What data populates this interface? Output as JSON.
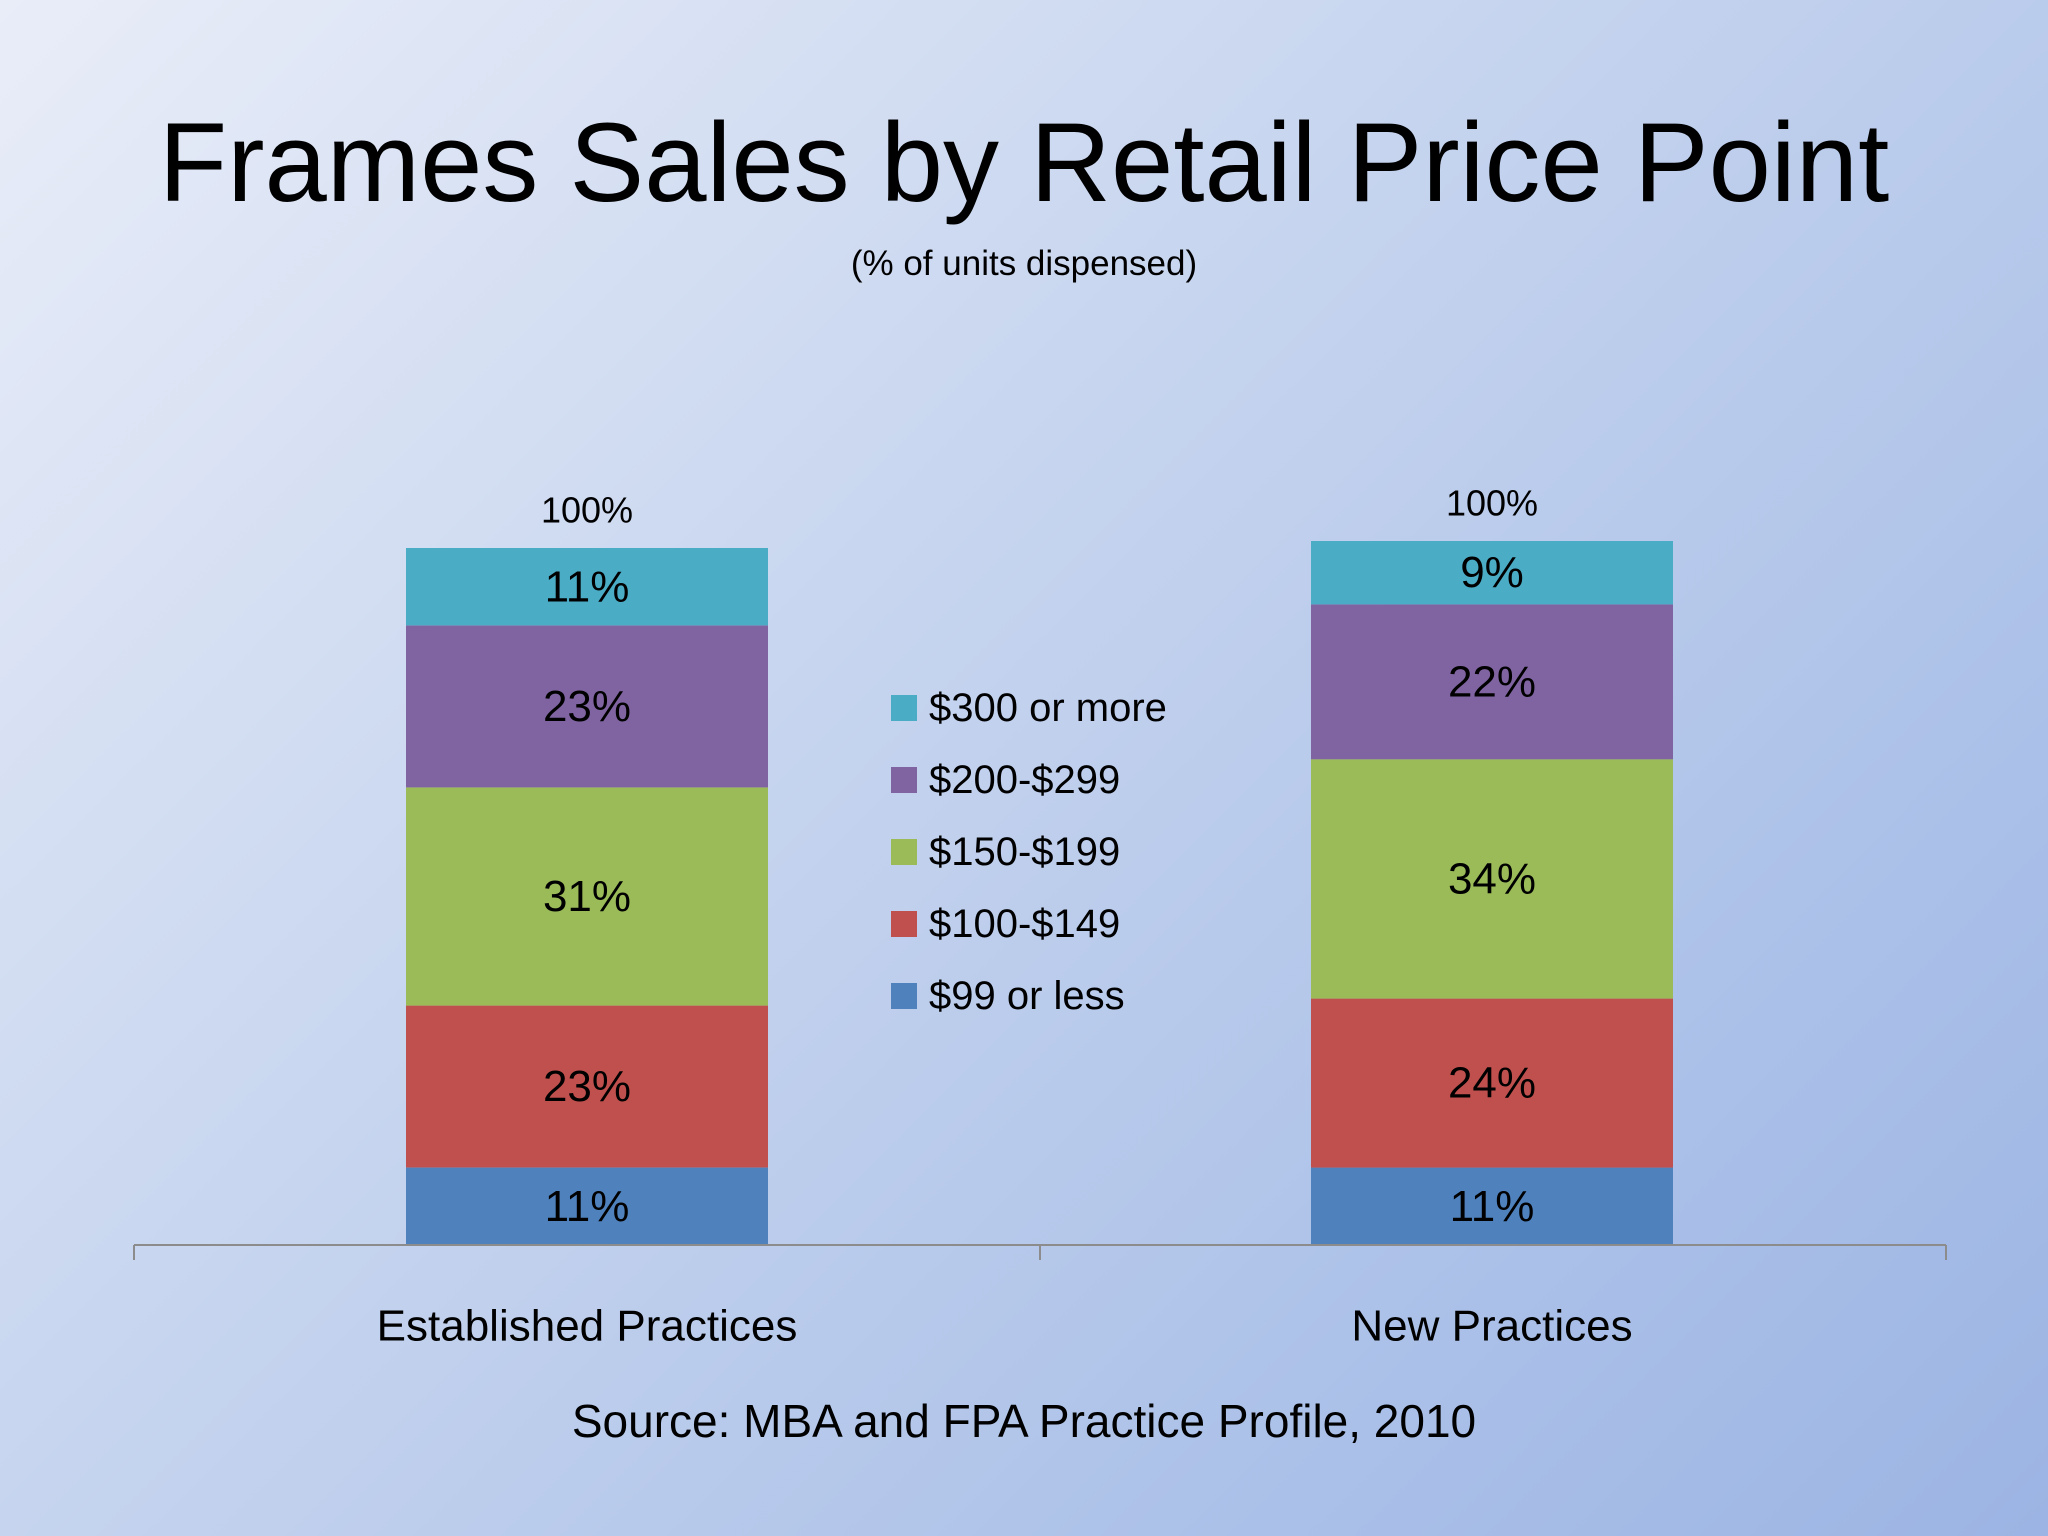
{
  "slide": {
    "title": "Frames Sales by Retail Price Point",
    "subtitle": "(% of units dispensed)",
    "source": "Source: MBA and FPA Practice Profile, 2010"
  },
  "chart_data": {
    "type": "bar",
    "stacked": true,
    "categories": [
      "Established Practices",
      "New Practices"
    ],
    "series": [
      {
        "name": "$99 or less",
        "values": [
          11,
          11
        ],
        "labels": [
          "11%",
          "11%"
        ],
        "color": "#4f81bd"
      },
      {
        "name": "$100-$149",
        "values": [
          23,
          24
        ],
        "labels": [
          "23%",
          "24%"
        ],
        "color": "#c0504d"
      },
      {
        "name": "$150-$199",
        "values": [
          31,
          34
        ],
        "labels": [
          "31%",
          "34%"
        ],
        "color": "#9bbb59"
      },
      {
        "name": "$200-$299",
        "values": [
          23,
          22
        ],
        "labels": [
          "23%",
          "22%"
        ],
        "color": "#8064a2"
      },
      {
        "name": "$300 or more",
        "values": [
          11,
          9
        ],
        "labels": [
          "11%",
          "9%"
        ],
        "color": "#4bacc6"
      }
    ],
    "totals": [
      "100%",
      "100%"
    ],
    "ylim": [
      0,
      100
    ],
    "grid": false,
    "legend_position": "center",
    "legend_order": [
      "$300 or more",
      "$200-$299",
      "$150-$199",
      "$100-$149",
      "$99 or less"
    ]
  }
}
